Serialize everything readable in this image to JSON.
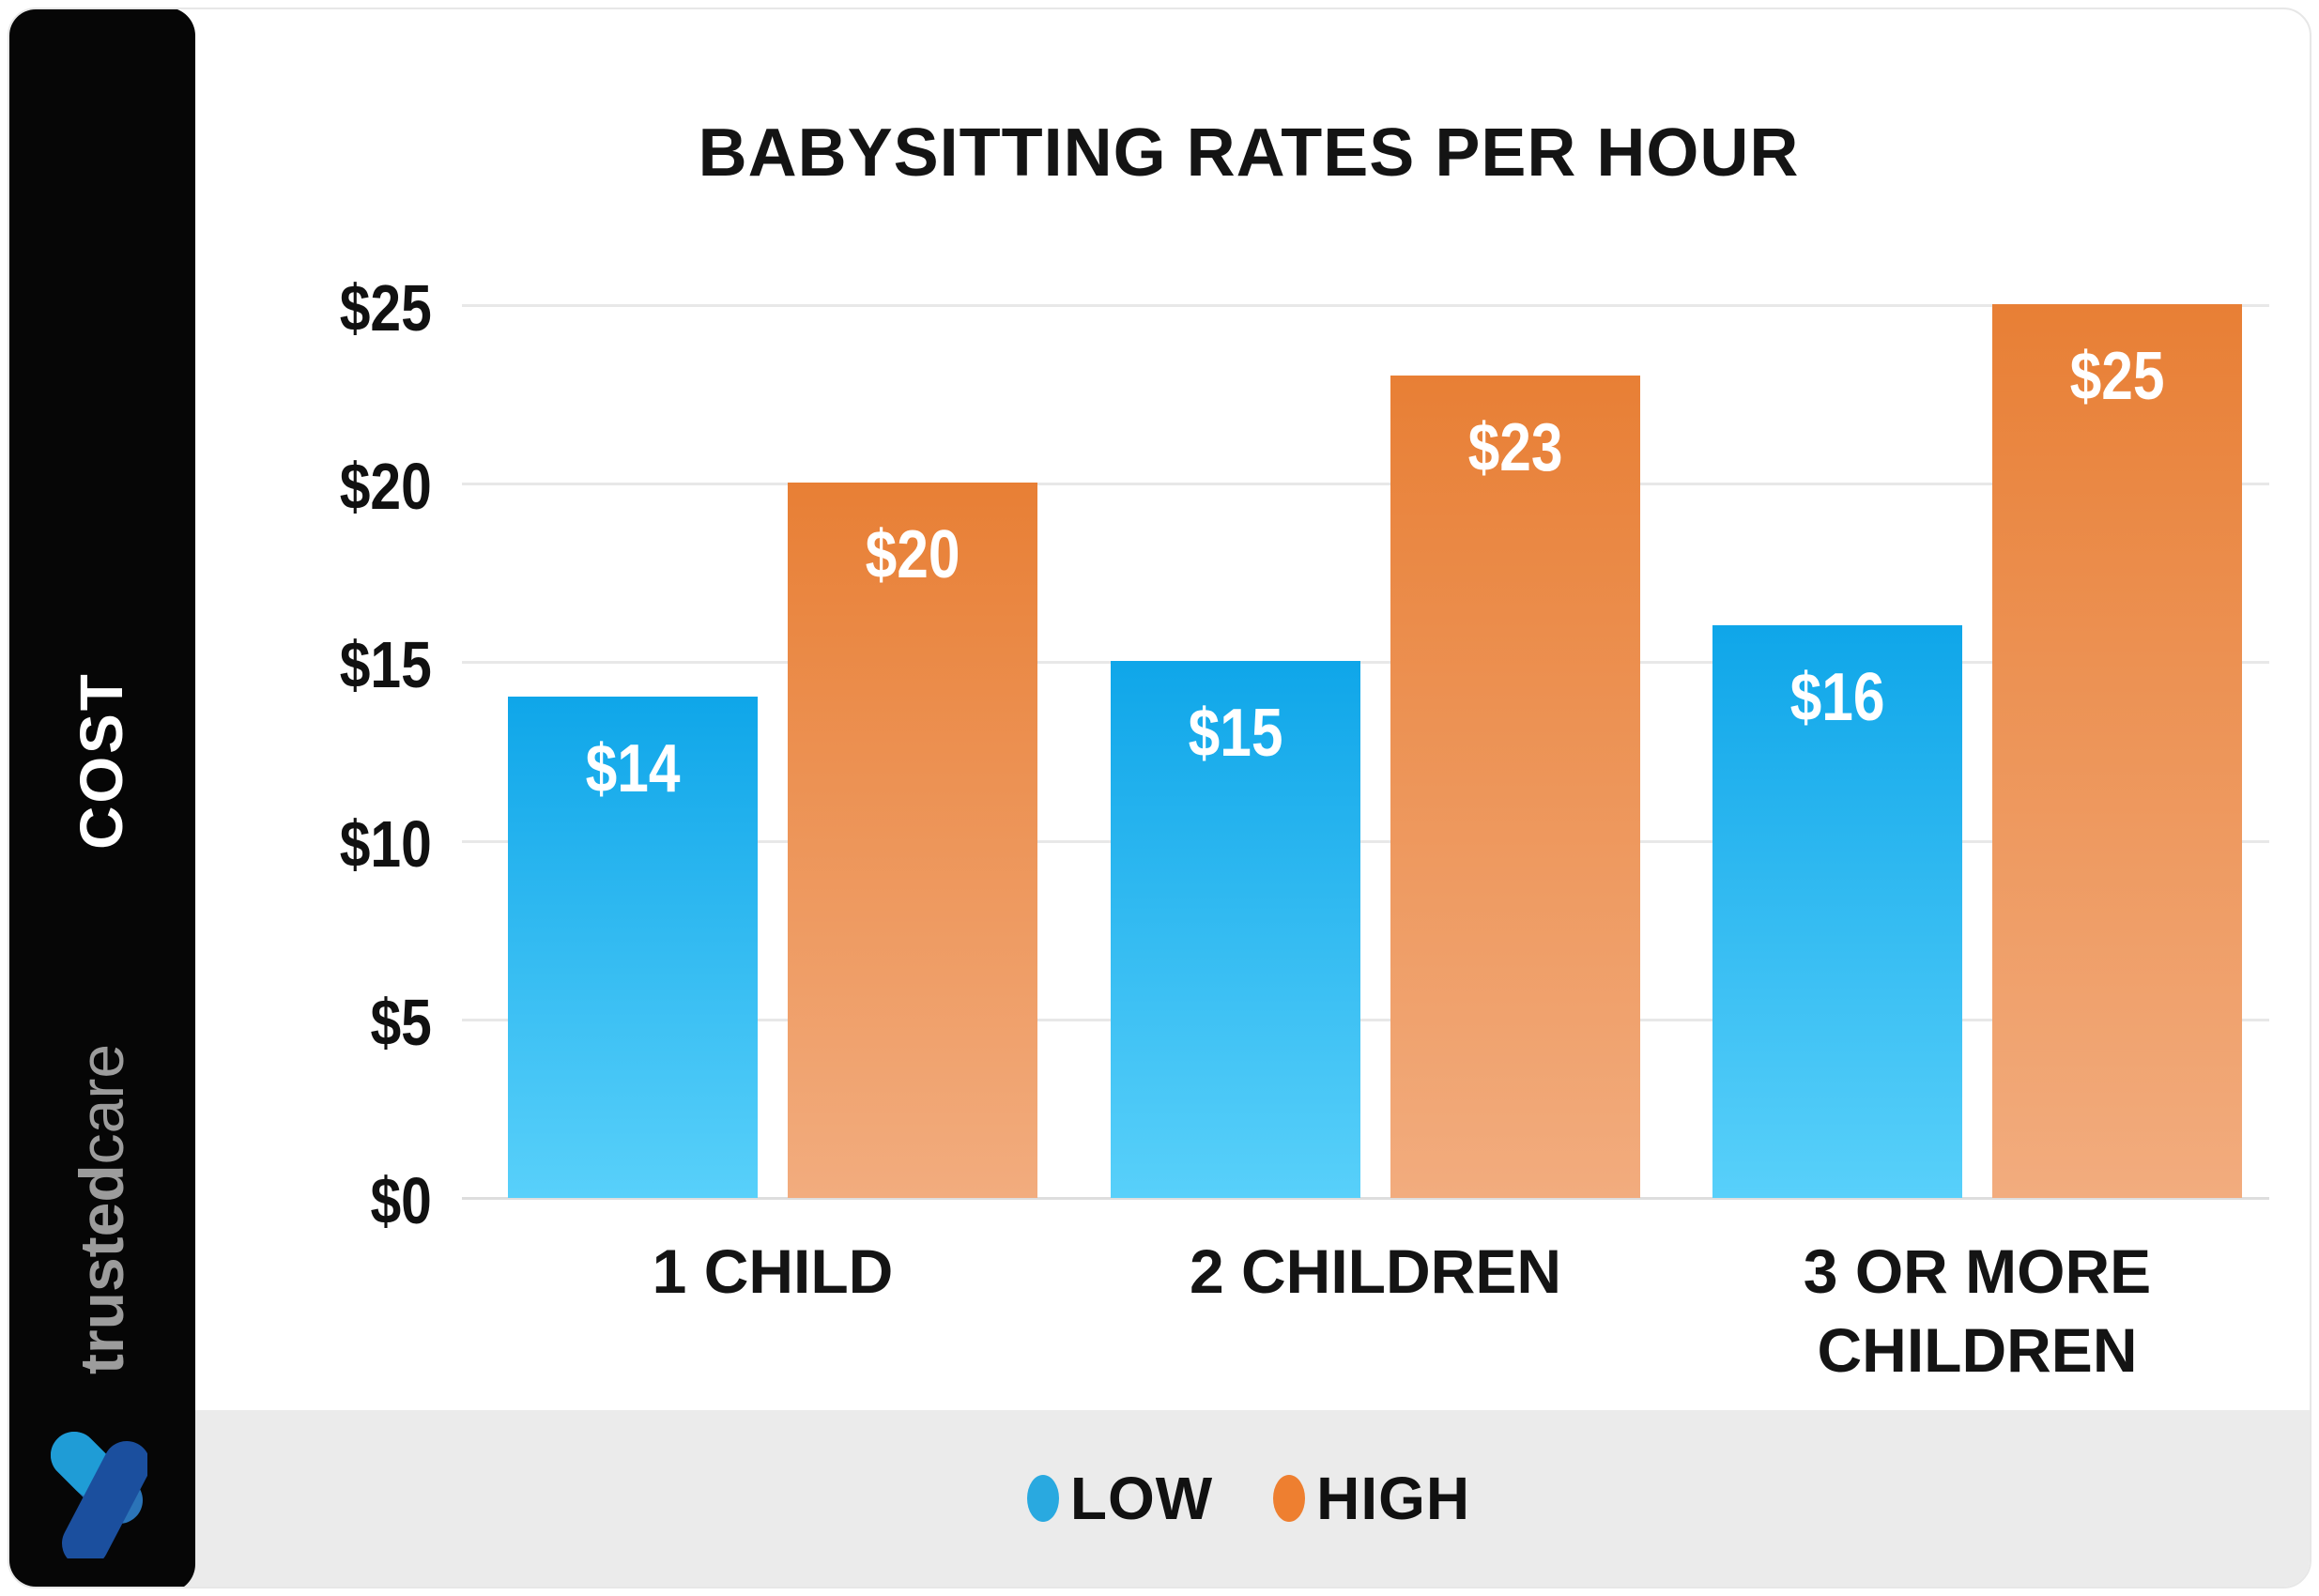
{
  "sidebar": {
    "cost_label": "COST",
    "brand_bold": "trusted",
    "brand_light": "care"
  },
  "chart_data": {
    "type": "bar",
    "title": "BABYSITTING RATES PER HOUR",
    "categories": [
      "1 CHILD",
      "2 CHILDREN",
      "3 OR MORE CHILDREN"
    ],
    "series": [
      {
        "name": "LOW",
        "values": [
          14,
          15,
          16
        ],
        "value_labels": [
          "$14",
          "$15",
          "$16"
        ],
        "color_top": "#0fa6e9",
        "color_bottom": "#58d0fa",
        "legend_color": "#29a9e0"
      },
      {
        "name": "HIGH",
        "values": [
          20,
          23,
          25
        ],
        "value_labels": [
          "$20",
          "$23",
          "$25"
        ],
        "color_top": "#e87f35",
        "color_bottom": "#f2ac7e",
        "legend_color": "#ee7f30"
      }
    ],
    "ylabel": "COST",
    "y_ticks": [
      {
        "label": "$25",
        "value": 25
      },
      {
        "label": "$20",
        "value": 20
      },
      {
        "label": "$15",
        "value": 15
      },
      {
        "label": "$10",
        "value": 10
      },
      {
        "label": "$5",
        "value": 5
      },
      {
        "label": "$0",
        "value": 0
      }
    ],
    "ylim": [
      0,
      25
    ],
    "grid": true,
    "legend_position": "bottom"
  },
  "legend": {
    "items": [
      {
        "label": "LOW",
        "color": "#29a9e0"
      },
      {
        "label": "HIGH",
        "color": "#ee7f30"
      }
    ]
  },
  "logo_colors": {
    "light": "#1f9cd6",
    "medium": "#2b74b8",
    "dark": "#1b4f9e"
  }
}
